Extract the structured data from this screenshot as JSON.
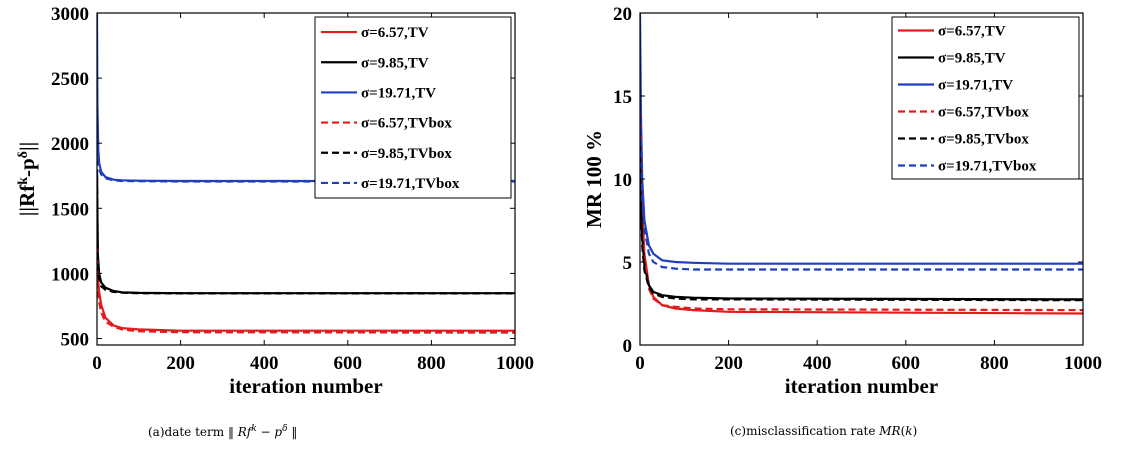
{
  "chart_data": [
    {
      "type": "line",
      "ylabel": "||Rf^k-p^δ||",
      "xlabel": "iteration number",
      "xlim": [
        0,
        1000
      ],
      "ylim": [
        450,
        3000
      ],
      "xticks": [
        0,
        200,
        400,
        600,
        800,
        1000
      ],
      "yticks": [
        500,
        1000,
        1500,
        2000,
        2500,
        3000
      ],
      "legend_position": "top-right",
      "caption": "(a)date term ‖ Rf^k − p^δ ‖",
      "series": [
        {
          "name": "σ=6.57,TV",
          "color": "#e41a1c",
          "dash": "solid",
          "x": [
            0,
            2,
            5,
            10,
            20,
            40,
            60,
            100,
            200,
            1000
          ],
          "y": [
            1500,
            980,
            860,
            760,
            660,
            600,
            580,
            570,
            560,
            560
          ]
        },
        {
          "name": "σ=9.85,TV",
          "color": "#000000",
          "dash": "solid",
          "x": [
            0,
            2,
            5,
            10,
            20,
            40,
            60,
            100,
            200,
            1000
          ],
          "y": [
            1800,
            1150,
            1000,
            930,
            890,
            865,
            855,
            850,
            848,
            848
          ]
        },
        {
          "name": "σ=19.71,TV",
          "color": "#1f3fbf",
          "dash": "solid",
          "x": [
            0,
            1,
            3,
            5,
            10,
            20,
            40,
            60,
            100,
            200,
            1000
          ],
          "y": [
            3000,
            2300,
            1950,
            1850,
            1780,
            1740,
            1720,
            1715,
            1712,
            1710,
            1710
          ]
        },
        {
          "name": "σ=6.57,TVbox",
          "color": "#e41a1c",
          "dash": "dashed",
          "x": [
            0,
            2,
            5,
            10,
            20,
            40,
            60,
            100,
            200,
            1000
          ],
          "y": [
            1200,
            900,
            780,
            700,
            630,
            590,
            570,
            555,
            548,
            545
          ]
        },
        {
          "name": "σ=9.85,TVbox",
          "color": "#000000",
          "dash": "dashed",
          "x": [
            0,
            2,
            5,
            10,
            20,
            40,
            60,
            100,
            200,
            1000
          ],
          "y": [
            1750,
            1100,
            960,
            900,
            875,
            858,
            852,
            848,
            846,
            846
          ]
        },
        {
          "name": "σ=19.71,TVbox",
          "color": "#1f3fbf",
          "dash": "dashed",
          "x": [
            0,
            1,
            3,
            5,
            10,
            20,
            40,
            60,
            100,
            200,
            1000
          ],
          "y": [
            2050,
            1950,
            1850,
            1800,
            1760,
            1730,
            1715,
            1710,
            1708,
            1706,
            1706
          ]
        }
      ]
    },
    {
      "type": "line",
      "ylabel": "MR 100 %",
      "xlabel": "iteration number",
      "xlim": [
        0,
        1000
      ],
      "ylim": [
        0,
        20
      ],
      "xticks": [
        0,
        200,
        400,
        600,
        800,
        1000
      ],
      "yticks": [
        0,
        5,
        10,
        15,
        20
      ],
      "legend_position": "top-right",
      "caption": "(c)misclassification rate MR(k)",
      "series": [
        {
          "name": "σ=6.57,TV",
          "color": "#e41a1c",
          "dash": "solid",
          "x": [
            0,
            2,
            5,
            10,
            20,
            30,
            50,
            80,
            120,
            200,
            1000
          ],
          "y": [
            16,
            12,
            8,
            5.5,
            3.6,
            2.9,
            2.4,
            2.2,
            2.1,
            2.0,
            1.9
          ]
        },
        {
          "name": "σ=9.85,TV",
          "color": "#000000",
          "dash": "solid",
          "x": [
            0,
            2,
            5,
            10,
            20,
            30,
            50,
            80,
            120,
            200,
            1000
          ],
          "y": [
            13,
            9,
            6.5,
            4.8,
            3.6,
            3.2,
            3.0,
            2.9,
            2.85,
            2.8,
            2.75
          ]
        },
        {
          "name": "σ=19.71,TV",
          "color": "#1f3fbf",
          "dash": "solid",
          "x": [
            0,
            2,
            5,
            10,
            20,
            30,
            50,
            80,
            120,
            200,
            1000
          ],
          "y": [
            20,
            14,
            10,
            7.5,
            6.0,
            5.5,
            5.1,
            5.0,
            4.95,
            4.9,
            4.9
          ]
        },
        {
          "name": "σ=6.57,TVbox",
          "color": "#e41a1c",
          "dash": "dashed",
          "x": [
            0,
            2,
            5,
            10,
            20,
            30,
            50,
            80,
            120,
            200,
            1000
          ],
          "y": [
            14,
            10,
            7,
            5,
            3.4,
            2.8,
            2.4,
            2.3,
            2.2,
            2.15,
            2.1
          ]
        },
        {
          "name": "σ=9.85,TVbox",
          "color": "#000000",
          "dash": "dashed",
          "x": [
            0,
            2,
            5,
            10,
            20,
            30,
            50,
            80,
            120,
            200,
            1000
          ],
          "y": [
            12,
            8.5,
            6,
            4.5,
            3.5,
            3.1,
            2.9,
            2.8,
            2.75,
            2.75,
            2.7
          ]
        },
        {
          "name": "σ=19.71,TVbox",
          "color": "#1f3fbf",
          "dash": "dashed",
          "x": [
            0,
            2,
            5,
            10,
            20,
            30,
            50,
            80,
            120,
            200,
            1000
          ],
          "y": [
            17,
            12,
            9,
            7,
            5.5,
            5.0,
            4.7,
            4.6,
            4.55,
            4.55,
            4.55
          ]
        }
      ]
    }
  ]
}
